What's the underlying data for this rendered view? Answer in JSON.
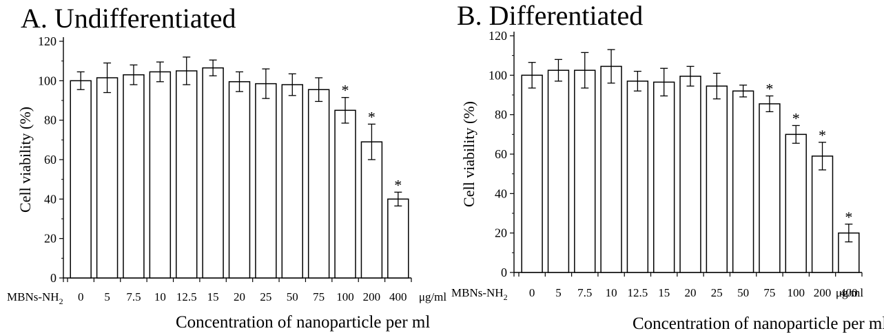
{
  "chart_data": [
    {
      "type": "bar",
      "title": "A. Undifferentiated",
      "xlabel": "Concentration of nanoparticle per ml",
      "ylabel": "Cell viability (%)",
      "x_prefix": "MBNs-NH",
      "x_prefix_sub": "2",
      "x_unit": "μg/ml",
      "categories": [
        "0",
        "5",
        "7.5",
        "10",
        "12.5",
        "15",
        "20",
        "25",
        "50",
        "75",
        "100",
        "200",
        "400"
      ],
      "values": [
        100,
        101.5,
        103,
        104.5,
        105,
        106.5,
        99.5,
        98.5,
        98,
        95.5,
        85,
        69,
        40
      ],
      "errors": [
        4.5,
        7.5,
        5,
        5,
        7,
        4,
        5,
        7.5,
        5.5,
        6,
        6.5,
        9,
        3.5
      ],
      "significant": [
        false,
        false,
        false,
        false,
        false,
        false,
        false,
        false,
        false,
        false,
        true,
        true,
        true
      ],
      "significance_marker": "*",
      "ylim": [
        0,
        120
      ],
      "yticks": [
        0,
        20,
        40,
        60,
        80,
        100,
        120
      ],
      "grid": false,
      "legend": "none"
    },
    {
      "type": "bar",
      "title": "B. Differentiated",
      "xlabel": "Concentration of nanoparticle per ml",
      "ylabel": "Cell viability (%)",
      "x_prefix": "MBNs-NH",
      "x_prefix_sub": "2",
      "x_unit": "μg/ml",
      "categories": [
        "0",
        "5",
        "7.5",
        "10",
        "12.5",
        "15",
        "20",
        "25",
        "50",
        "75",
        "100",
        "200",
        "400"
      ],
      "values": [
        100,
        102.5,
        102.5,
        104.5,
        97,
        96.5,
        99.5,
        94.5,
        92,
        85.5,
        70,
        59,
        20
      ],
      "errors": [
        6.5,
        5.5,
        9,
        8.5,
        5,
        7,
        5,
        6.5,
        3,
        4,
        4.5,
        7,
        4.5
      ],
      "significant": [
        false,
        false,
        false,
        false,
        false,
        false,
        false,
        false,
        false,
        true,
        true,
        true,
        true
      ],
      "significance_marker": "*",
      "ylim": [
        0,
        120
      ],
      "yticks": [
        0,
        20,
        40,
        60,
        80,
        100,
        120
      ],
      "grid": false,
      "legend": "none"
    }
  ]
}
